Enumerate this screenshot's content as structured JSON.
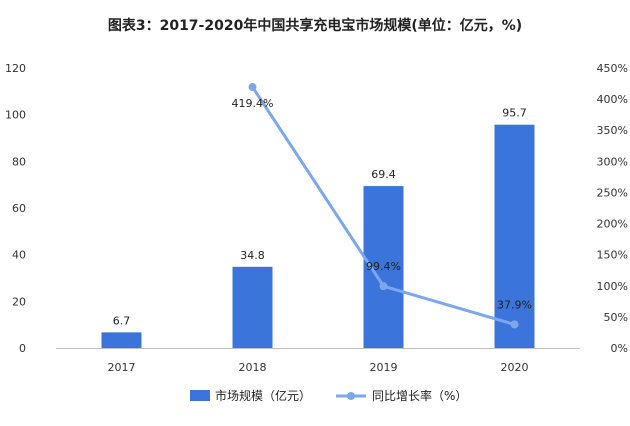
{
  "chart_data": {
    "type": "bar",
    "title": "图表3：2017-2020年中国共享充电宝市场规模(单位：亿元，%)",
    "categories": [
      "2017",
      "2018",
      "2019",
      "2020"
    ],
    "series": [
      {
        "name": "市场规模（亿元）",
        "type": "bar",
        "axis": "left",
        "values": [
          6.7,
          34.8,
          69.4,
          95.7
        ],
        "labels": [
          "6.7",
          "34.8",
          "69.4",
          "95.7"
        ],
        "color": "#3b74db"
      },
      {
        "name": "同比增长率（%）",
        "type": "line",
        "axis": "right",
        "x": [
          "2018",
          "2019",
          "2020"
        ],
        "values": [
          419.4,
          99.4,
          37.9
        ],
        "labels": [
          "419.4%",
          "99.4%",
          "37.9%"
        ],
        "color": "#7ca7ee"
      }
    ],
    "y_left": {
      "ylim": [
        0,
        120
      ],
      "ticks": [
        "0",
        "20",
        "40",
        "60",
        "80",
        "100",
        "120"
      ]
    },
    "y_right": {
      "ylim": [
        0,
        450
      ],
      "ticks": [
        "0%",
        "50%",
        "100%",
        "150%",
        "200%",
        "250%",
        "300%",
        "350%",
        "400%",
        "450%"
      ]
    },
    "grid": false,
    "legend": "bottom"
  }
}
